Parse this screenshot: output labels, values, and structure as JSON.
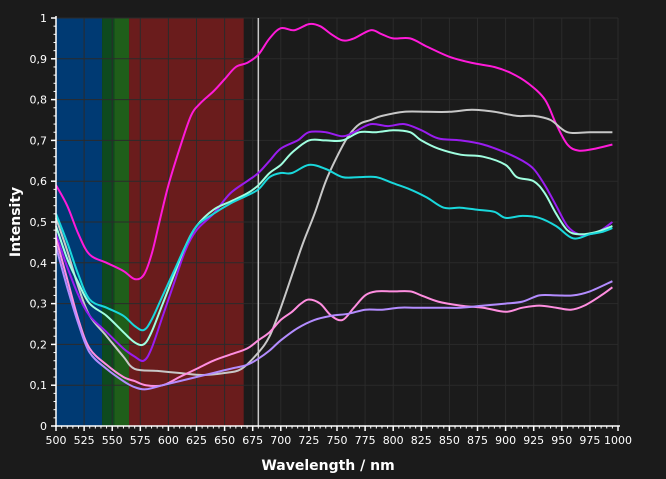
{
  "chart_data": {
    "type": "line",
    "xlabel": "Wavelength / nm",
    "ylabel": "Intensity",
    "xlim": [
      500,
      1000
    ],
    "ylim": [
      0,
      1
    ],
    "x_ticks": [
      "500",
      "525",
      "550",
      "575",
      "600",
      "625",
      "650",
      "675",
      "700",
      "725",
      "750",
      "775",
      "800",
      "825",
      "850",
      "875",
      "900",
      "925",
      "950",
      "975",
      "1000"
    ],
    "y_ticks": [
      "0",
      "0,1",
      "0,2",
      "0,3",
      "0,4",
      "0,5",
      "0,6",
      "0,7",
      "0,8",
      "0,9",
      "1"
    ],
    "grid": true,
    "colors": {
      "background": "#1b1b1b",
      "grid": "#2b2b2b",
      "axis": "#ffffff"
    },
    "bands": [
      {
        "from": 500,
        "to": 541,
        "color": "#003a73"
      },
      {
        "from": 541,
        "to": 552,
        "color": "#0e4a1f"
      },
      {
        "from": 552,
        "to": 565,
        "color": "#1f5e1a"
      },
      {
        "from": 565,
        "to": 667,
        "color": "#6a1c1c"
      }
    ],
    "marker_line": {
      "x": 680,
      "color": "#c8c8c8"
    },
    "series": [
      {
        "color": "#ff1ad9",
        "points": [
          [
            500,
            0.59
          ],
          [
            510,
            0.54
          ],
          [
            520,
            0.47
          ],
          [
            530,
            0.42
          ],
          [
            545,
            0.4
          ],
          [
            560,
            0.38
          ],
          [
            570,
            0.36
          ],
          [
            578,
            0.37
          ],
          [
            585,
            0.42
          ],
          [
            592,
            0.5
          ],
          [
            600,
            0.59
          ],
          [
            610,
            0.68
          ],
          [
            620,
            0.76
          ],
          [
            628,
            0.79
          ],
          [
            640,
            0.82
          ],
          [
            650,
            0.85
          ],
          [
            660,
            0.88
          ],
          [
            670,
            0.89
          ],
          [
            680,
            0.91
          ],
          [
            690,
            0.95
          ],
          [
            700,
            0.975
          ],
          [
            712,
            0.97
          ],
          [
            725,
            0.985
          ],
          [
            735,
            0.98
          ],
          [
            745,
            0.96
          ],
          [
            755,
            0.945
          ],
          [
            765,
            0.95
          ],
          [
            780,
            0.97
          ],
          [
            790,
            0.96
          ],
          [
            800,
            0.95
          ],
          [
            815,
            0.95
          ],
          [
            830,
            0.93
          ],
          [
            850,
            0.905
          ],
          [
            870,
            0.89
          ],
          [
            890,
            0.88
          ],
          [
            905,
            0.865
          ],
          [
            920,
            0.84
          ],
          [
            935,
            0.8
          ],
          [
            945,
            0.74
          ],
          [
            955,
            0.69
          ],
          [
            965,
            0.675
          ],
          [
            980,
            0.68
          ],
          [
            995,
            0.69
          ]
        ]
      },
      {
        "color": "#c8c8c8",
        "points": [
          [
            500,
            0.51
          ],
          [
            510,
            0.43
          ],
          [
            520,
            0.34
          ],
          [
            530,
            0.27
          ],
          [
            545,
            0.22
          ],
          [
            560,
            0.17
          ],
          [
            570,
            0.14
          ],
          [
            590,
            0.135
          ],
          [
            610,
            0.13
          ],
          [
            630,
            0.125
          ],
          [
            650,
            0.13
          ],
          [
            665,
            0.14
          ],
          [
            680,
            0.18
          ],
          [
            690,
            0.22
          ],
          [
            700,
            0.29
          ],
          [
            710,
            0.37
          ],
          [
            720,
            0.45
          ],
          [
            730,
            0.52
          ],
          [
            740,
            0.6
          ],
          [
            750,
            0.66
          ],
          [
            760,
            0.71
          ],
          [
            770,
            0.74
          ],
          [
            780,
            0.75
          ],
          [
            790,
            0.76
          ],
          [
            810,
            0.77
          ],
          [
            830,
            0.77
          ],
          [
            850,
            0.77
          ],
          [
            870,
            0.775
          ],
          [
            890,
            0.77
          ],
          [
            910,
            0.76
          ],
          [
            925,
            0.76
          ],
          [
            940,
            0.75
          ],
          [
            955,
            0.72
          ],
          [
            975,
            0.72
          ],
          [
            995,
            0.72
          ]
        ]
      },
      {
        "color": "#9a1cf0",
        "points": [
          [
            500,
            0.47
          ],
          [
            510,
            0.39
          ],
          [
            520,
            0.32
          ],
          [
            530,
            0.27
          ],
          [
            545,
            0.23
          ],
          [
            560,
            0.19
          ],
          [
            570,
            0.17
          ],
          [
            578,
            0.16
          ],
          [
            585,
            0.19
          ],
          [
            595,
            0.27
          ],
          [
            605,
            0.35
          ],
          [
            615,
            0.43
          ],
          [
            625,
            0.48
          ],
          [
            640,
            0.52
          ],
          [
            655,
            0.57
          ],
          [
            670,
            0.6
          ],
          [
            680,
            0.62
          ],
          [
            690,
            0.65
          ],
          [
            700,
            0.68
          ],
          [
            715,
            0.7
          ],
          [
            725,
            0.72
          ],
          [
            740,
            0.72
          ],
          [
            755,
            0.71
          ],
          [
            765,
            0.72
          ],
          [
            780,
            0.74
          ],
          [
            795,
            0.735
          ],
          [
            810,
            0.74
          ],
          [
            825,
            0.725
          ],
          [
            840,
            0.705
          ],
          [
            860,
            0.7
          ],
          [
            880,
            0.69
          ],
          [
            900,
            0.67
          ],
          [
            915,
            0.65
          ],
          [
            925,
            0.63
          ],
          [
            935,
            0.59
          ],
          [
            945,
            0.54
          ],
          [
            955,
            0.49
          ],
          [
            965,
            0.47
          ],
          [
            975,
            0.47
          ],
          [
            985,
            0.48
          ],
          [
            995,
            0.5
          ]
        ]
      },
      {
        "color": "#a0ffe0",
        "points": [
          [
            500,
            0.49
          ],
          [
            510,
            0.41
          ],
          [
            520,
            0.35
          ],
          [
            530,
            0.3
          ],
          [
            545,
            0.27
          ],
          [
            560,
            0.23
          ],
          [
            570,
            0.205
          ],
          [
            578,
            0.2
          ],
          [
            585,
            0.23
          ],
          [
            595,
            0.3
          ],
          [
            605,
            0.37
          ],
          [
            615,
            0.44
          ],
          [
            625,
            0.49
          ],
          [
            640,
            0.53
          ],
          [
            655,
            0.55
          ],
          [
            670,
            0.57
          ],
          [
            680,
            0.59
          ],
          [
            690,
            0.62
          ],
          [
            700,
            0.64
          ],
          [
            710,
            0.67
          ],
          [
            725,
            0.7
          ],
          [
            740,
            0.7
          ],
          [
            755,
            0.7
          ],
          [
            770,
            0.72
          ],
          [
            785,
            0.72
          ],
          [
            800,
            0.725
          ],
          [
            815,
            0.72
          ],
          [
            825,
            0.7
          ],
          [
            840,
            0.68
          ],
          [
            860,
            0.665
          ],
          [
            880,
            0.66
          ],
          [
            900,
            0.64
          ],
          [
            910,
            0.61
          ],
          [
            925,
            0.6
          ],
          [
            935,
            0.57
          ],
          [
            945,
            0.52
          ],
          [
            955,
            0.48
          ],
          [
            965,
            0.47
          ],
          [
            980,
            0.475
          ],
          [
            995,
            0.49
          ]
        ]
      },
      {
        "color": "#19d8dc",
        "points": [
          [
            500,
            0.52
          ],
          [
            510,
            0.45
          ],
          [
            520,
            0.37
          ],
          [
            530,
            0.31
          ],
          [
            545,
            0.29
          ],
          [
            560,
            0.27
          ],
          [
            570,
            0.245
          ],
          [
            578,
            0.235
          ],
          [
            585,
            0.26
          ],
          [
            595,
            0.32
          ],
          [
            605,
            0.38
          ],
          [
            615,
            0.44
          ],
          [
            625,
            0.49
          ],
          [
            640,
            0.52
          ],
          [
            655,
            0.545
          ],
          [
            670,
            0.565
          ],
          [
            680,
            0.58
          ],
          [
            690,
            0.61
          ],
          [
            700,
            0.62
          ],
          [
            710,
            0.62
          ],
          [
            725,
            0.64
          ],
          [
            740,
            0.63
          ],
          [
            755,
            0.61
          ],
          [
            770,
            0.61
          ],
          [
            785,
            0.61
          ],
          [
            800,
            0.595
          ],
          [
            815,
            0.58
          ],
          [
            830,
            0.56
          ],
          [
            845,
            0.535
          ],
          [
            860,
            0.535
          ],
          [
            875,
            0.53
          ],
          [
            890,
            0.525
          ],
          [
            900,
            0.51
          ],
          [
            915,
            0.515
          ],
          [
            930,
            0.51
          ],
          [
            945,
            0.49
          ],
          [
            960,
            0.46
          ],
          [
            975,
            0.47
          ],
          [
            985,
            0.475
          ],
          [
            995,
            0.485
          ]
        ]
      },
      {
        "color": "#ff8ee0",
        "points": [
          [
            500,
            0.46
          ],
          [
            510,
            0.36
          ],
          [
            520,
            0.26
          ],
          [
            530,
            0.19
          ],
          [
            545,
            0.15
          ],
          [
            560,
            0.12
          ],
          [
            570,
            0.11
          ],
          [
            580,
            0.1
          ],
          [
            595,
            0.1
          ],
          [
            610,
            0.12
          ],
          [
            625,
            0.14
          ],
          [
            640,
            0.16
          ],
          [
            655,
            0.175
          ],
          [
            670,
            0.19
          ],
          [
            680,
            0.21
          ],
          [
            690,
            0.23
          ],
          [
            700,
            0.26
          ],
          [
            710,
            0.28
          ],
          [
            718,
            0.3
          ],
          [
            725,
            0.31
          ],
          [
            735,
            0.3
          ],
          [
            745,
            0.27
          ],
          [
            755,
            0.26
          ],
          [
            765,
            0.29
          ],
          [
            775,
            0.32
          ],
          [
            785,
            0.33
          ],
          [
            800,
            0.33
          ],
          [
            815,
            0.33
          ],
          [
            825,
            0.32
          ],
          [
            840,
            0.305
          ],
          [
            860,
            0.295
          ],
          [
            880,
            0.29
          ],
          [
            900,
            0.28
          ],
          [
            915,
            0.29
          ],
          [
            930,
            0.295
          ],
          [
            945,
            0.29
          ],
          [
            958,
            0.285
          ],
          [
            970,
            0.295
          ],
          [
            985,
            0.32
          ],
          [
            995,
            0.34
          ]
        ]
      },
      {
        "color": "#b38cff",
        "points": [
          [
            500,
            0.44
          ],
          [
            510,
            0.34
          ],
          [
            520,
            0.25
          ],
          [
            530,
            0.18
          ],
          [
            545,
            0.14
          ],
          [
            560,
            0.11
          ],
          [
            570,
            0.095
          ],
          [
            580,
            0.09
          ],
          [
            595,
            0.1
          ],
          [
            610,
            0.11
          ],
          [
            625,
            0.12
          ],
          [
            640,
            0.13
          ],
          [
            655,
            0.14
          ],
          [
            670,
            0.15
          ],
          [
            680,
            0.165
          ],
          [
            690,
            0.185
          ],
          [
            700,
            0.21
          ],
          [
            715,
            0.24
          ],
          [
            730,
            0.26
          ],
          [
            745,
            0.27
          ],
          [
            760,
            0.275
          ],
          [
            775,
            0.285
          ],
          [
            790,
            0.285
          ],
          [
            805,
            0.29
          ],
          [
            820,
            0.29
          ],
          [
            840,
            0.29
          ],
          [
            860,
            0.29
          ],
          [
            880,
            0.295
          ],
          [
            900,
            0.3
          ],
          [
            915,
            0.305
          ],
          [
            930,
            0.32
          ],
          [
            945,
            0.32
          ],
          [
            960,
            0.32
          ],
          [
            975,
            0.33
          ],
          [
            995,
            0.355
          ]
        ]
      }
    ]
  }
}
